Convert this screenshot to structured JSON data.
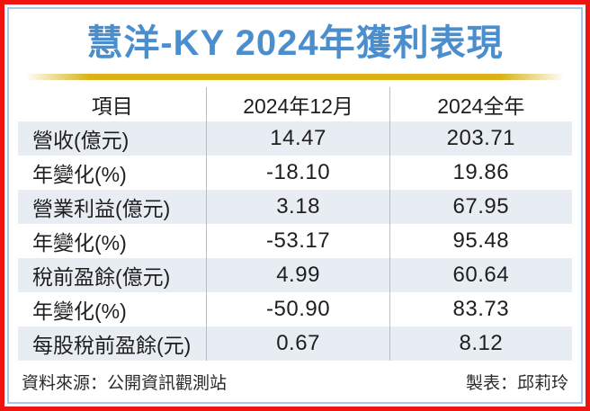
{
  "chart_data": {
    "type": "table",
    "title": "慧洋-KY 2024年獲利表現",
    "columns": [
      "項目",
      "2024年12月",
      "2024全年"
    ],
    "rows": [
      [
        "營收(億元)",
        "14.47",
        "203.71"
      ],
      [
        "年變化(%)",
        "-18.10",
        "19.86"
      ],
      [
        "營業利益(億元)",
        "3.18",
        "67.95"
      ],
      [
        "年變化(%)",
        "-53.17",
        "95.48"
      ],
      [
        "稅前盈餘(億元)",
        "4.99",
        "60.64"
      ],
      [
        "年變化(%)",
        "-50.90",
        "83.73"
      ],
      [
        "每股稅前盈餘(元)",
        "0.67",
        "8.12"
      ]
    ],
    "source": "資料來源：公開資訊觀測站",
    "credit": "製表：邱莉玲"
  },
  "colors": {
    "border_red": "#ee1411",
    "inner_border_blue": "#a5c8ea",
    "title_blue": "#4a8ecd",
    "gold_line": "#d8b217",
    "row_alt_blue": "#e8edf4",
    "divider_gray": "#b6bcc6",
    "text_dark": "#1e1e1e"
  }
}
